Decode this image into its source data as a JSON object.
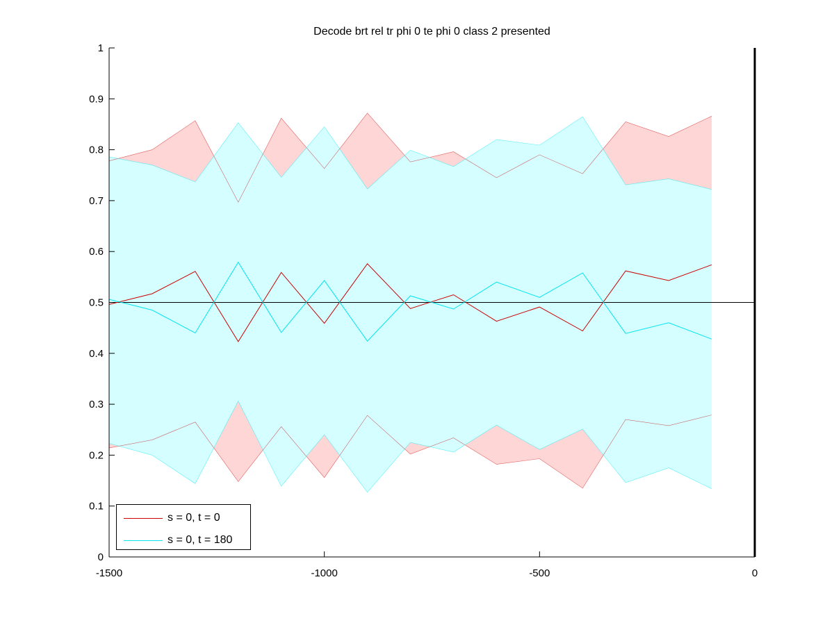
{
  "chart_data": {
    "type": "line",
    "title": "Decode brt rel tr phi 0 te phi 0  class 2 presented",
    "xlabel": "",
    "ylabel": "",
    "xlim": [
      -1500,
      0
    ],
    "ylim": [
      0,
      1
    ],
    "x_ticks": [
      -1500,
      -1000,
      -500,
      0
    ],
    "x_tick_labels": [
      "-1500",
      "-1000",
      "-500",
      "0"
    ],
    "y_ticks": [
      0,
      0.1,
      0.2,
      0.3,
      0.4,
      0.5,
      0.6,
      0.7,
      0.8,
      0.9,
      1
    ],
    "y_tick_labels": [
      "0",
      "0.1",
      "0.2",
      "0.3",
      "0.4",
      "0.5",
      "0.6",
      "0.7",
      "0.8",
      "0.9",
      "1"
    ],
    "grid": false,
    "legend_position": "bottom-left",
    "reference_line_y": 0.5,
    "vertical_line_x": 0,
    "x": [
      -1500,
      -1400,
      -1300,
      -1200,
      -1100,
      -1000,
      -900,
      -800,
      -700,
      -600,
      -500,
      -400,
      -300,
      -200,
      -100
    ],
    "series": [
      {
        "name": "s = 0, t = 0",
        "color": "#cc0000",
        "fill_color": "#ffd6d6",
        "values": [
          0.496,
          0.517,
          0.561,
          0.423,
          0.559,
          0.459,
          0.576,
          0.488,
          0.515,
          0.463,
          0.491,
          0.444,
          0.562,
          0.543,
          0.574
        ],
        "upper": [
          0.778,
          0.8,
          0.857,
          0.697,
          0.862,
          0.763,
          0.872,
          0.776,
          0.796,
          0.745,
          0.79,
          0.753,
          0.855,
          0.826,
          0.866
        ],
        "lower": [
          0.214,
          0.23,
          0.265,
          0.148,
          0.256,
          0.156,
          0.278,
          0.202,
          0.234,
          0.182,
          0.193,
          0.135,
          0.27,
          0.258,
          0.279
        ]
      },
      {
        "name": "s = 0, t = 180",
        "color": "#00e5ee",
        "fill_color": "#d4feff",
        "values": [
          0.506,
          0.485,
          0.44,
          0.579,
          0.441,
          0.543,
          0.424,
          0.513,
          0.487,
          0.54,
          0.51,
          0.558,
          0.439,
          0.46,
          0.428
        ],
        "upper": [
          0.786,
          0.77,
          0.737,
          0.853,
          0.746,
          0.845,
          0.723,
          0.799,
          0.767,
          0.82,
          0.809,
          0.865,
          0.731,
          0.743,
          0.722
        ],
        "lower": [
          0.223,
          0.2,
          0.144,
          0.306,
          0.139,
          0.24,
          0.127,
          0.225,
          0.206,
          0.259,
          0.211,
          0.251,
          0.146,
          0.175,
          0.134
        ]
      }
    ]
  }
}
